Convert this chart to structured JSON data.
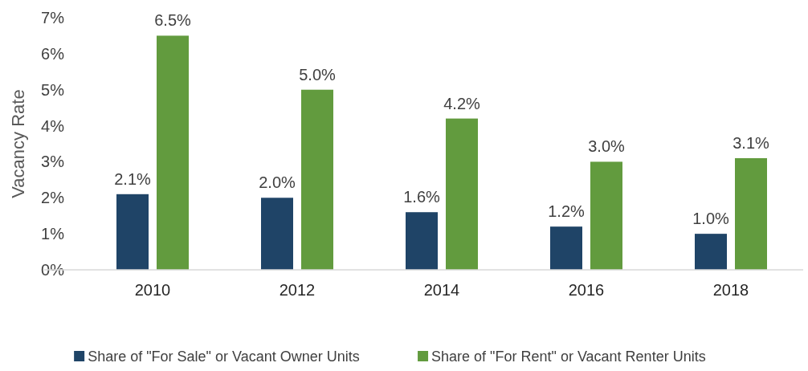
{
  "chart_data": {
    "type": "bar",
    "ylabel": "Vacancy Rate",
    "categories": [
      "2010",
      "2012",
      "2014",
      "2016",
      "2018"
    ],
    "series": [
      {
        "name": "Share of \"For Sale\" or Vacant Owner Units",
        "color": "#1f4467",
        "values": [
          2.1,
          2.0,
          1.6,
          1.2,
          1.0
        ],
        "value_labels": [
          "2.1%",
          "2.0%",
          "1.6%",
          "1.2%",
          "1.0%"
        ]
      },
      {
        "name": "Share of \"For Rent\" or Vacant Renter Units",
        "color": "#629b3e",
        "values": [
          6.5,
          5.0,
          4.2,
          3.0,
          3.1
        ],
        "value_labels": [
          "6.5%",
          "5.0%",
          "4.2%",
          "3.0%",
          "3.1%"
        ]
      }
    ],
    "ylim": [
      0,
      7
    ],
    "yticks": [
      {
        "value": 0,
        "label": "0%"
      },
      {
        "value": 1,
        "label": "1%"
      },
      {
        "value": 2,
        "label": "2%"
      },
      {
        "value": 3,
        "label": "3%"
      },
      {
        "value": 4,
        "label": "4%"
      },
      {
        "value": 5,
        "label": "5%"
      },
      {
        "value": 6,
        "label": "6%"
      },
      {
        "value": 7,
        "label": "7%"
      }
    ],
    "grid": false,
    "legend": "bottom"
  }
}
